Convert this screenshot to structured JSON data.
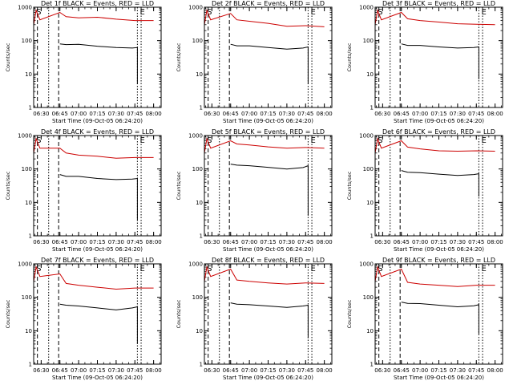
{
  "chart_data": [
    {
      "type": "line",
      "title": "Det 1f BLACK = Events, RED = LLD",
      "xlabel": "Start Time (09-Oct-05 06:24:20)",
      "ylabel": "Counts/sec",
      "yscale": "log",
      "ylim": [
        1,
        1000
      ],
      "xlim": [
        "06:24",
        "08:06"
      ],
      "xticks": [
        "06:30",
        "06:45",
        "07:00",
        "07:15",
        "07:30",
        "07:45",
        "08:00"
      ],
      "yticks": [
        "1",
        "10",
        "100",
        "1000"
      ],
      "markers": [
        {
          "label": "S",
          "time": "06:26"
        },
        {
          "label": "E",
          "time": "07:49"
        }
      ],
      "series": [
        {
          "color": "#cc0000",
          "data": [
            [
              "06:24",
              300
            ],
            [
              "06:26",
              800
            ],
            [
              "06:29",
              420
            ],
            [
              "06:45",
              700
            ],
            [
              "06:50",
              520
            ],
            [
              "07:00",
              480
            ],
            [
              "07:15",
              500
            ],
            [
              "07:30",
              440
            ],
            [
              "07:45",
              400
            ],
            [
              "08:00",
              400
            ]
          ]
        },
        {
          "color": "#000000",
          "data": [
            [
              "06:45",
              80
            ],
            [
              "06:50",
              76
            ],
            [
              "07:00",
              78
            ],
            [
              "07:15",
              68
            ],
            [
              "07:30",
              62
            ],
            [
              "07:43",
              60
            ],
            [
              "07:47",
              62
            ],
            [
              "07:47",
              5
            ]
          ]
        }
      ]
    },
    {
      "type": "line",
      "title": "Det 2f BLACK = Events, RED = LLD",
      "xlabel": "Start Time (09-Oct-05 06:24:20)",
      "ylabel": "Counts/sec",
      "yscale": "log",
      "ylim": [
        1,
        1000
      ],
      "xlim": [
        "06:24",
        "08:06"
      ],
      "xticks": [
        "06:30",
        "06:45",
        "07:00",
        "07:15",
        "07:30",
        "07:45",
        "08:00"
      ],
      "yticks": [
        "1",
        "10",
        "100",
        "1000"
      ],
      "markers": [
        {
          "label": "S",
          "time": "06:26"
        },
        {
          "label": "E",
          "time": "07:49"
        }
      ],
      "series": [
        {
          "color": "#cc0000",
          "data": [
            [
              "06:24",
              300
            ],
            [
              "06:26",
              800
            ],
            [
              "06:29",
              420
            ],
            [
              "06:45",
              650
            ],
            [
              "06:50",
              420
            ],
            [
              "07:00",
              380
            ],
            [
              "07:15",
              330
            ],
            [
              "07:30",
              270
            ],
            [
              "07:45",
              280
            ],
            [
              "08:00",
              260
            ]
          ]
        },
        {
          "color": "#000000",
          "data": [
            [
              "06:45",
              78
            ],
            [
              "06:50",
              70
            ],
            [
              "07:00",
              70
            ],
            [
              "07:15",
              62
            ],
            [
              "07:30",
              56
            ],
            [
              "07:43",
              60
            ],
            [
              "07:47",
              65
            ],
            [
              "07:47",
              5
            ]
          ]
        }
      ]
    },
    {
      "type": "line",
      "title": "Det 3f BLACK = Events, RED = LLD",
      "xlabel": "Start Time (09-Oct-05 06:24:20)",
      "ylabel": "Counts/sec",
      "yscale": "log",
      "ylim": [
        1,
        1000
      ],
      "xlim": [
        "06:24",
        "08:06"
      ],
      "xticks": [
        "06:30",
        "06:45",
        "07:00",
        "07:15",
        "07:30",
        "07:45",
        "08:00"
      ],
      "yticks": [
        "1",
        "10",
        "100",
        "1000"
      ],
      "markers": [
        {
          "label": "S",
          "time": "06:26"
        },
        {
          "label": "E",
          "time": "07:49"
        }
      ],
      "series": [
        {
          "color": "#cc0000",
          "data": [
            [
              "06:24",
              300
            ],
            [
              "06:26",
              800
            ],
            [
              "06:29",
              420
            ],
            [
              "06:45",
              700
            ],
            [
              "06:50",
              450
            ],
            [
              "07:00",
              400
            ],
            [
              "07:15",
              360
            ],
            [
              "07:30",
              320
            ],
            [
              "07:45",
              310
            ],
            [
              "08:00",
              300
            ]
          ]
        },
        {
          "color": "#000000",
          "data": [
            [
              "06:45",
              80
            ],
            [
              "06:50",
              72
            ],
            [
              "07:00",
              72
            ],
            [
              "07:15",
              65
            ],
            [
              "07:30",
              60
            ],
            [
              "07:43",
              62
            ],
            [
              "07:47",
              65
            ],
            [
              "07:47",
              7
            ]
          ]
        }
      ]
    },
    {
      "type": "line",
      "title": "Det 4f BLACK = Events, RED = LLD",
      "xlabel": "Start Time (09-Oct-05 06:24:20)",
      "ylabel": "Counts/sec",
      "yscale": "log",
      "ylim": [
        1,
        1000
      ],
      "xlim": [
        "06:24",
        "08:06"
      ],
      "xticks": [
        "06:30",
        "06:45",
        "07:00",
        "07:15",
        "07:30",
        "07:45",
        "08:00"
      ],
      "yticks": [
        "1",
        "10",
        "100",
        "1000"
      ],
      "markers": [
        {
          "label": "S",
          "time": "06:26"
        },
        {
          "label": "E",
          "time": "07:49"
        }
      ],
      "series": [
        {
          "color": "#cc0000",
          "data": [
            [
              "06:24",
              300
            ],
            [
              "06:26",
              800
            ],
            [
              "06:29",
              420
            ],
            [
              "06:45",
              420
            ],
            [
              "06:50",
              300
            ],
            [
              "07:00",
              260
            ],
            [
              "07:15",
              240
            ],
            [
              "07:30",
              210
            ],
            [
              "07:45",
              220
            ],
            [
              "08:00",
              220
            ]
          ]
        },
        {
          "color": "#000000",
          "data": [
            [
              "06:45",
              68
            ],
            [
              "06:50",
              60
            ],
            [
              "07:00",
              60
            ],
            [
              "07:15",
              52
            ],
            [
              "07:30",
              48
            ],
            [
              "07:43",
              50
            ],
            [
              "07:47",
              52
            ],
            [
              "07:47",
              3
            ]
          ]
        }
      ]
    },
    {
      "type": "line",
      "title": "Det 5f BLACK = Events, RED = LLD",
      "xlabel": "Start Time (09-Oct-05 06:24:20)",
      "ylabel": "Counts/sec",
      "yscale": "log",
      "ylim": [
        1,
        1000
      ],
      "xlim": [
        "06:24",
        "08:06"
      ],
      "xticks": [
        "06:30",
        "06:45",
        "07:00",
        "07:15",
        "07:30",
        "07:45",
        "08:00"
      ],
      "yticks": [
        "1",
        "10",
        "100",
        "1000"
      ],
      "markers": [
        {
          "label": "S",
          "time": "06:26"
        },
        {
          "label": "E",
          "time": "07:49"
        }
      ],
      "series": [
        {
          "color": "#cc0000",
          "data": [
            [
              "06:24",
              300
            ],
            [
              "06:26",
              800
            ],
            [
              "06:29",
              420
            ],
            [
              "06:45",
              700
            ],
            [
              "06:50",
              560
            ],
            [
              "07:00",
              520
            ],
            [
              "07:15",
              460
            ],
            [
              "07:30",
              420
            ],
            [
              "07:45",
              440
            ],
            [
              "08:00",
              420
            ]
          ]
        },
        {
          "color": "#000000",
          "data": [
            [
              "06:45",
              140
            ],
            [
              "06:50",
              130
            ],
            [
              "07:00",
              125
            ],
            [
              "07:15",
              112
            ],
            [
              "07:30",
              100
            ],
            [
              "07:43",
              110
            ],
            [
              "07:47",
              125
            ],
            [
              "07:47",
              4
            ]
          ]
        }
      ]
    },
    {
      "type": "line",
      "title": "Det 6f BLACK = Events, RED = LLD",
      "xlabel": "Start Time (09-Oct-05 06:24:20)",
      "ylabel": "Counts/sec",
      "yscale": "log",
      "ylim": [
        1,
        1000
      ],
      "xlim": [
        "06:24",
        "08:06"
      ],
      "xticks": [
        "06:30",
        "06:45",
        "07:00",
        "07:15",
        "07:30",
        "07:45",
        "08:00"
      ],
      "yticks": [
        "1",
        "10",
        "100",
        "1000"
      ],
      "markers": [
        {
          "label": "S",
          "time": "06:26"
        },
        {
          "label": "E",
          "time": "07:49"
        }
      ],
      "series": [
        {
          "color": "#cc0000",
          "data": [
            [
              "06:24",
              300
            ],
            [
              "06:26",
              800
            ],
            [
              "06:29",
              420
            ],
            [
              "06:45",
              700
            ],
            [
              "06:50",
              450
            ],
            [
              "07:00",
              400
            ],
            [
              "07:15",
              350
            ],
            [
              "07:30",
              340
            ],
            [
              "07:45",
              350
            ],
            [
              "08:00",
              340
            ]
          ]
        },
        {
          "color": "#000000",
          "data": [
            [
              "06:45",
              90
            ],
            [
              "06:50",
              80
            ],
            [
              "07:00",
              78
            ],
            [
              "07:15",
              70
            ],
            [
              "07:30",
              64
            ],
            [
              "07:43",
              68
            ],
            [
              "07:47",
              72
            ],
            [
              "07:47",
              15
            ]
          ]
        }
      ]
    },
    {
      "type": "line",
      "title": "Det 7f BLACK = Events, RED = LLD",
      "xlabel": "Start Time (09-Oct-05 06:24:20)",
      "ylabel": "Counts/sec",
      "yscale": "log",
      "ylim": [
        1,
        1000
      ],
      "xlim": [
        "06:24",
        "08:06"
      ],
      "xticks": [
        "06:30",
        "06:45",
        "07:00",
        "07:15",
        "07:30",
        "07:45",
        "08:00"
      ],
      "yticks": [
        "1",
        "10",
        "100",
        "1000"
      ],
      "markers": [
        {
          "label": "S",
          "time": "06:26"
        },
        {
          "label": "E",
          "time": "07:49"
        }
      ],
      "series": [
        {
          "color": "#cc0000",
          "data": [
            [
              "06:24",
              300
            ],
            [
              "06:26",
              800
            ],
            [
              "06:29",
              420
            ],
            [
              "06:45",
              500
            ],
            [
              "06:50",
              260
            ],
            [
              "07:00",
              230
            ],
            [
              "07:15",
              200
            ],
            [
              "07:30",
              175
            ],
            [
              "07:45",
              190
            ],
            [
              "08:00",
              190
            ]
          ]
        },
        {
          "color": "#000000",
          "data": [
            [
              "06:45",
              62
            ],
            [
              "06:50",
              58
            ],
            [
              "07:00",
              55
            ],
            [
              "07:15",
              48
            ],
            [
              "07:30",
              42
            ],
            [
              "07:43",
              48
            ],
            [
              "07:47",
              52
            ],
            [
              "07:47",
              4
            ]
          ]
        }
      ]
    },
    {
      "type": "line",
      "title": "Det 8f BLACK = Events, RED = LLD",
      "xlabel": "Start Time (09-Oct-05 06:24:20)",
      "ylabel": "Counts/sec",
      "yscale": "log",
      "ylim": [
        1,
        1000
      ],
      "xlim": [
        "06:24",
        "08:06"
      ],
      "xticks": [
        "06:30",
        "06:45",
        "07:00",
        "07:15",
        "07:30",
        "07:45",
        "08:00"
      ],
      "yticks": [
        "1",
        "10",
        "100",
        "1000"
      ],
      "markers": [
        {
          "label": "S",
          "time": "06:26"
        },
        {
          "label": "E",
          "time": "07:49"
        }
      ],
      "series": [
        {
          "color": "#cc0000",
          "data": [
            [
              "06:24",
              300
            ],
            [
              "06:26",
              800
            ],
            [
              "06:29",
              420
            ],
            [
              "06:45",
              700
            ],
            [
              "06:50",
              330
            ],
            [
              "07:00",
              300
            ],
            [
              "07:15",
              270
            ],
            [
              "07:30",
              250
            ],
            [
              "07:45",
              270
            ],
            [
              "08:00",
              260
            ]
          ]
        },
        {
          "color": "#000000",
          "data": [
            [
              "06:45",
              68
            ],
            [
              "06:50",
              62
            ],
            [
              "07:00",
              60
            ],
            [
              "07:15",
              55
            ],
            [
              "07:30",
              50
            ],
            [
              "07:43",
              55
            ],
            [
              "07:47",
              58
            ],
            [
              "07:47",
              6
            ]
          ]
        }
      ]
    },
    {
      "type": "line",
      "title": "Det 9f BLACK = Events, RED = LLD",
      "xlabel": "Start Time (09-Oct-05 06:24:20)",
      "ylabel": "Counts/sec",
      "yscale": "log",
      "ylim": [
        1,
        1000
      ],
      "xlim": [
        "06:24",
        "08:06"
      ],
      "xticks": [
        "06:30",
        "06:45",
        "07:00",
        "07:15",
        "07:30",
        "07:45",
        "08:00"
      ],
      "yticks": [
        "1",
        "10",
        "100",
        "1000"
      ],
      "markers": [
        {
          "label": "S",
          "time": "06:26"
        },
        {
          "label": "E",
          "time": "07:49"
        }
      ],
      "series": [
        {
          "color": "#cc0000",
          "data": [
            [
              "06:24",
              300
            ],
            [
              "06:26",
              800
            ],
            [
              "06:29",
              420
            ],
            [
              "06:45",
              700
            ],
            [
              "06:50",
              280
            ],
            [
              "07:00",
              250
            ],
            [
              "07:15",
              230
            ],
            [
              "07:30",
              210
            ],
            [
              "07:45",
              230
            ],
            [
              "08:00",
              230
            ]
          ]
        },
        {
          "color": "#000000",
          "data": [
            [
              "06:45",
              72
            ],
            [
              "06:50",
              66
            ],
            [
              "07:00",
              65
            ],
            [
              "07:15",
              58
            ],
            [
              "07:30",
              52
            ],
            [
              "07:43",
              56
            ],
            [
              "07:47",
              60
            ],
            [
              "07:47",
              8
            ]
          ]
        }
      ]
    }
  ]
}
